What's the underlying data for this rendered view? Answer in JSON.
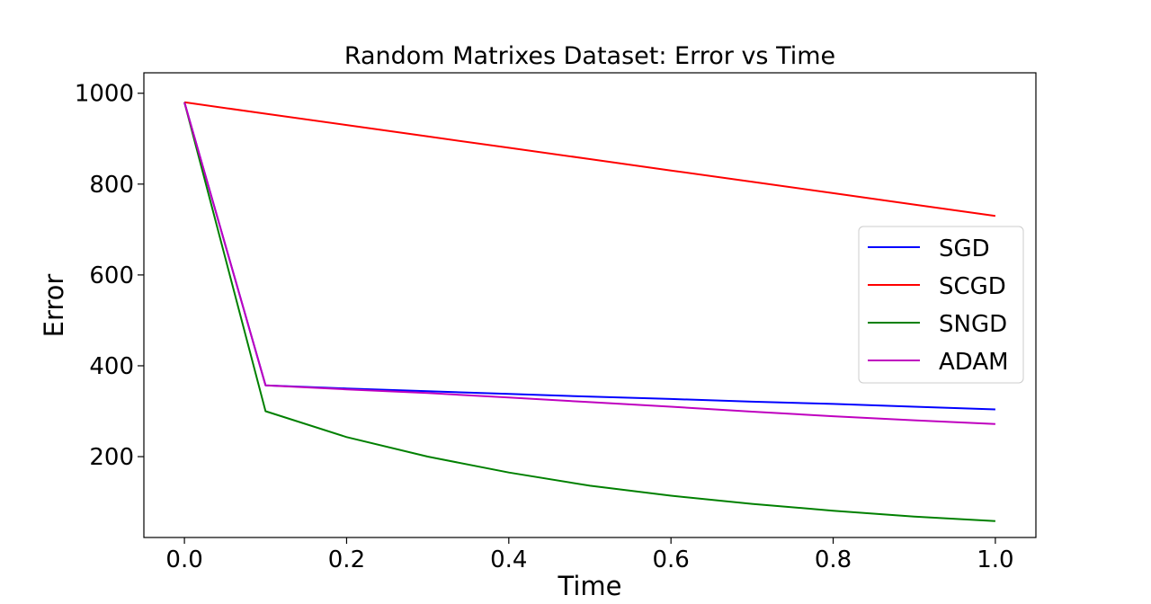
{
  "chart_data": {
    "type": "line",
    "title": "Random Matrixes Dataset: Error vs Time",
    "xlabel": "Time",
    "ylabel": "Error",
    "xlim": [
      -0.05,
      1.05
    ],
    "ylim": [
      22,
      1045
    ],
    "xticks": [
      0.0,
      0.2,
      0.4,
      0.6,
      0.8,
      1.0
    ],
    "xtick_labels": [
      "0.0",
      "0.2",
      "0.4",
      "0.6",
      "0.8",
      "1.0"
    ],
    "yticks": [
      200,
      400,
      600,
      800,
      1000
    ],
    "ytick_labels": [
      "200",
      "400",
      "600",
      "800",
      "1000"
    ],
    "grid": false,
    "legend_position": "center-right",
    "series": [
      {
        "name": "SGD",
        "color": "#0000ff",
        "x": [
          0.0,
          0.1,
          0.2,
          0.3,
          0.4,
          0.5,
          0.6,
          0.7,
          0.8,
          0.9,
          1.0
        ],
        "y": [
          980,
          357,
          350,
          344,
          338,
          332,
          327,
          321,
          316,
          310,
          304
        ]
      },
      {
        "name": "SCGD",
        "color": "#ff0000",
        "x": [
          0.0,
          0.1,
          0.2,
          0.3,
          0.4,
          0.5,
          0.6,
          0.7,
          0.8,
          0.9,
          1.0
        ],
        "y": [
          980,
          955,
          930,
          905,
          880,
          855,
          830,
          805,
          780,
          755,
          730
        ]
      },
      {
        "name": "SNGD",
        "color": "#008000",
        "x": [
          0.0,
          0.1,
          0.2,
          0.3,
          0.4,
          0.5,
          0.6,
          0.7,
          0.8,
          0.9,
          1.0
        ],
        "y": [
          980,
          300,
          243,
          200,
          165,
          136,
          114,
          96,
          81,
          68,
          58
        ]
      },
      {
        "name": "ADAM",
        "color": "#bf00bf",
        "x": [
          0.0,
          0.1,
          0.2,
          0.3,
          0.4,
          0.5,
          0.6,
          0.7,
          0.8,
          0.9,
          1.0
        ],
        "y": [
          980,
          357,
          348,
          340,
          330,
          320,
          310,
          299,
          289,
          280,
          272
        ]
      }
    ]
  }
}
